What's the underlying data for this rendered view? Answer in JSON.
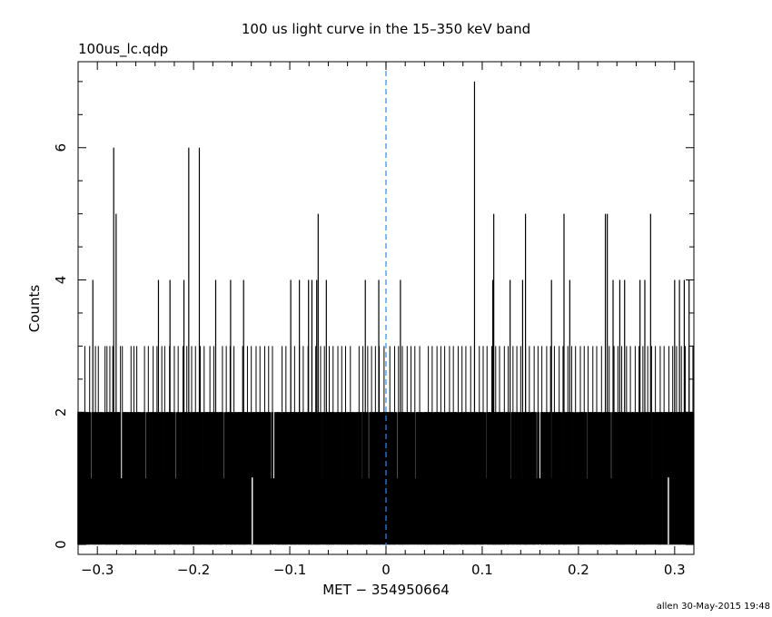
{
  "page": {
    "title": "100 us light curve in the 15–350 keV band",
    "filename": "100us_lc.qdp",
    "credit": "allen 30-May-2015 19:48"
  },
  "colors": {
    "data": "#000000",
    "trigger_line": "#1e90ff",
    "axes": "#000000"
  },
  "chart_data": {
    "type": "bar",
    "title": "100 us light curve in the 15–350 keV band",
    "xlabel": "MET − 354950664",
    "ylabel": "Counts",
    "xlim": [
      -0.32,
      0.32
    ],
    "ylim": [
      -0.15,
      7.3
    ],
    "xticks": [
      -0.3,
      -0.2,
      -0.1,
      0,
      0.1,
      0.2,
      0.3
    ],
    "xtick_labels": [
      "−0.3",
      "−0.2",
      "−0.1",
      "0",
      "0.1",
      "0.2",
      "0.3"
    ],
    "yticks": [
      0,
      2,
      4,
      6
    ],
    "ytick_labels": [
      "0",
      "2",
      "4",
      "6"
    ],
    "grid": false,
    "trigger_time": 0,
    "bin_width": 0.0001,
    "series": [
      {
        "bins": "contiguous 100 us bins from -0.32 to 0.32; baseline level 1 count with frequent 2-count bins (omitted below)",
        "peaks": [
          {
            "x": -0.3047,
            "y": 4
          },
          {
            "x": -0.283,
            "y": 6
          },
          {
            "x": -0.2805,
            "y": 5
          },
          {
            "x": -0.2365,
            "y": 4
          },
          {
            "x": -0.2245,
            "y": 4
          },
          {
            "x": -0.21,
            "y": 4
          },
          {
            "x": -0.205,
            "y": 6
          },
          {
            "x": -0.194,
            "y": 6
          },
          {
            "x": -0.177,
            "y": 4
          },
          {
            "x": -0.1615,
            "y": 4
          },
          {
            "x": -0.148,
            "y": 4
          },
          {
            "x": -0.099,
            "y": 4
          },
          {
            "x": -0.09,
            "y": 4
          },
          {
            "x": -0.0805,
            "y": 4
          },
          {
            "x": -0.077,
            "y": 4
          },
          {
            "x": -0.072,
            "y": 4
          },
          {
            "x": -0.0705,
            "y": 5
          },
          {
            "x": -0.062,
            "y": 4
          },
          {
            "x": -0.0215,
            "y": 4
          },
          {
            "x": -0.0075,
            "y": 4
          },
          {
            "x": 0.015,
            "y": 4
          },
          {
            "x": 0.092,
            "y": 7
          },
          {
            "x": 0.111,
            "y": 4
          },
          {
            "x": 0.112,
            "y": 5
          },
          {
            "x": 0.129,
            "y": 4
          },
          {
            "x": 0.142,
            "y": 4
          },
          {
            "x": 0.145,
            "y": 5
          },
          {
            "x": 0.172,
            "y": 4
          },
          {
            "x": 0.185,
            "y": 5
          },
          {
            "x": 0.191,
            "y": 4
          },
          {
            "x": 0.228,
            "y": 5
          },
          {
            "x": 0.23,
            "y": 5
          },
          {
            "x": 0.236,
            "y": 4
          },
          {
            "x": 0.243,
            "y": 4
          },
          {
            "x": 0.248,
            "y": 4
          },
          {
            "x": 0.264,
            "y": 4
          },
          {
            "x": 0.269,
            "y": 4
          },
          {
            "x": 0.275,
            "y": 5
          },
          {
            "x": 0.3,
            "y": 4
          },
          {
            "x": 0.305,
            "y": 4
          },
          {
            "x": 0.31,
            "y": 4
          },
          {
            "x": 0.315,
            "y": 4
          }
        ],
        "level_3_bins": [
          -0.313,
          -0.308,
          -0.302,
          -0.299,
          -0.292,
          -0.29,
          -0.287,
          -0.284,
          -0.276,
          -0.274,
          -0.265,
          -0.262,
          -0.259,
          -0.251,
          -0.247,
          -0.242,
          -0.238,
          -0.233,
          -0.23,
          -0.225,
          -0.22,
          -0.216,
          -0.211,
          -0.207,
          -0.202,
          -0.198,
          -0.193,
          -0.189,
          -0.183,
          -0.179,
          -0.17,
          -0.166,
          -0.162,
          -0.158,
          -0.149,
          -0.144,
          -0.14,
          -0.135,
          -0.131,
          -0.126,
          -0.122,
          -0.118,
          -0.108,
          -0.104,
          -0.099,
          -0.095,
          -0.09,
          -0.086,
          -0.081,
          -0.077,
          -0.073,
          -0.068,
          -0.064,
          -0.059,
          -0.055,
          -0.05,
          -0.046,
          -0.042,
          -0.037,
          -0.028,
          -0.024,
          -0.019,
          -0.015,
          -0.011,
          -0.007,
          -0.002,
          0.004,
          0.009,
          0.013,
          0.017,
          0.022,
          0.026,
          0.03,
          0.035,
          0.044,
          0.048,
          0.053,
          0.057,
          0.061,
          0.066,
          0.07,
          0.075,
          0.079,
          0.083,
          0.088,
          0.092,
          0.097,
          0.101,
          0.105,
          0.11,
          0.114,
          0.118,
          0.123,
          0.127,
          0.132,
          0.136,
          0.14,
          0.145,
          0.149,
          0.154,
          0.158,
          0.162,
          0.167,
          0.171,
          0.175,
          0.18,
          0.184,
          0.189,
          0.193,
          0.197,
          0.202,
          0.206,
          0.21,
          0.215,
          0.219,
          0.224,
          0.228,
          0.232,
          0.237,
          0.241,
          0.245,
          0.25,
          0.254,
          0.259,
          0.263,
          0.267,
          0.272,
          0.276,
          0.28,
          0.285,
          0.289,
          0.294,
          0.298,
          0.302,
          0.307,
          0.311,
          0.315,
          0.319
        ],
        "zero_bins": [
          -0.139,
          0.2935
        ],
        "baseline": 1
      }
    ]
  }
}
